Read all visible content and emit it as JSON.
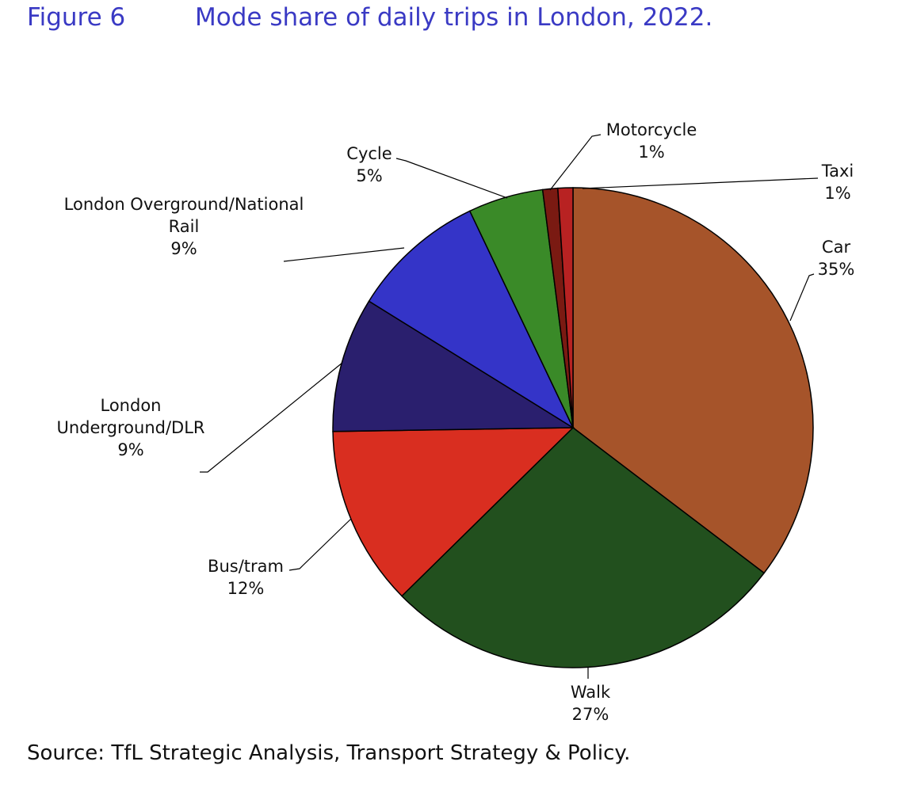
{
  "chart_data": {
    "type": "pie",
    "figure_label": "Figure 6",
    "title": "Mode share of daily trips in London, 2022.",
    "categories": [
      "Car",
      "Walk",
      "Bus/tram",
      "London Underground/DLR",
      "London Overground/National Rail",
      "Cycle",
      "Motorcycle",
      "Taxi"
    ],
    "values": [
      35,
      27,
      12,
      9,
      9,
      5,
      1,
      1
    ],
    "value_labels": [
      "35%",
      "27%",
      "12%",
      "9%",
      "9%",
      "5%",
      "1%",
      "1%"
    ],
    "colors": [
      "#a6542a",
      "#22501e",
      "#d92e20",
      "#2a1f6e",
      "#3434c8",
      "#3a8a28",
      "#7a1a12",
      "#b82222"
    ],
    "source": "Source: TfL Strategic Analysis, Transport Strategy & Policy."
  }
}
